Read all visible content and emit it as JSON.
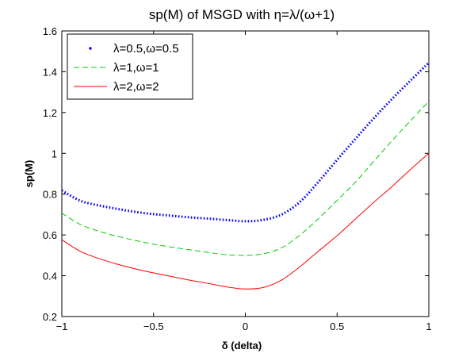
{
  "chart_data": {
    "type": "line",
    "title": "sp(M) of MSGD with η=λ/(ω+1)",
    "xlabel": "δ (delta)",
    "ylabel": "sp(M)",
    "xlim": [
      -1,
      1
    ],
    "ylim": [
      0.2,
      1.6
    ],
    "x_ticks": [
      -1,
      -0.5,
      0,
      0.5,
      1
    ],
    "x_tick_labels": [
      "−1",
      "−0.5",
      "0",
      "0.5",
      "1"
    ],
    "y_ticks": [
      0.2,
      0.4,
      0.6,
      0.8,
      1,
      1.2,
      1.4,
      1.6
    ],
    "y_tick_labels": [
      "0.2",
      "0.4",
      "0.6",
      "0.8",
      "1",
      "1.2",
      "1.4",
      "1.6"
    ],
    "grid": false,
    "legend_position": "top-left",
    "x": [
      -1,
      -0.9,
      -0.8,
      -0.7,
      -0.6,
      -0.5,
      -0.4,
      -0.3,
      -0.2,
      -0.1,
      0,
      0.1,
      0.2,
      0.3,
      0.4,
      0.5,
      0.6,
      0.7,
      0.8,
      0.9,
      1
    ],
    "series": [
      {
        "name": "λ=0.5,ω=0.5",
        "style": "dotted",
        "color": "#0000ff",
        "values": [
          0.818,
          0.768,
          0.745,
          0.728,
          0.713,
          0.702,
          0.694,
          0.686,
          0.68,
          0.673,
          0.667,
          0.674,
          0.701,
          0.764,
          0.862,
          0.968,
          1.071,
          1.172,
          1.267,
          1.357,
          1.444
        ]
      },
      {
        "name": "λ=1,ω=1",
        "style": "dashed",
        "color": "#00cc00",
        "values": [
          0.707,
          0.652,
          0.619,
          0.594,
          0.573,
          0.555,
          0.54,
          0.527,
          0.514,
          0.503,
          0.5,
          0.508,
          0.538,
          0.601,
          0.681,
          0.769,
          0.859,
          0.961,
          1.062,
          1.16,
          1.255
        ]
      },
      {
        "name": "λ=2,ω=2",
        "style": "solid",
        "color": "#ff0000",
        "values": [
          0.577,
          0.52,
          0.485,
          0.457,
          0.434,
          0.414,
          0.396,
          0.378,
          0.362,
          0.345,
          0.335,
          0.343,
          0.38,
          0.446,
          0.522,
          0.596,
          0.678,
          0.76,
          0.838,
          0.921,
          1.0
        ]
      }
    ]
  }
}
